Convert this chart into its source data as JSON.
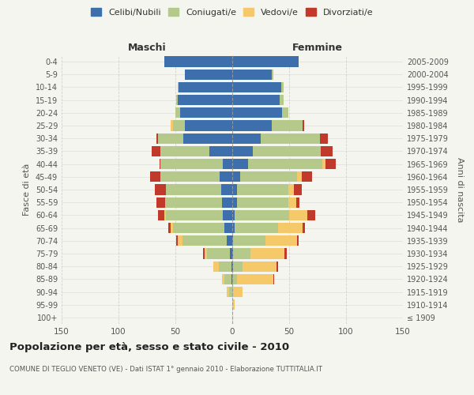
{
  "age_groups": [
    "100+",
    "95-99",
    "90-94",
    "85-89",
    "80-84",
    "75-79",
    "70-74",
    "65-69",
    "60-64",
    "55-59",
    "50-54",
    "45-49",
    "40-44",
    "35-39",
    "30-34",
    "25-29",
    "20-24",
    "15-19",
    "10-14",
    "5-9",
    "0-4"
  ],
  "birth_years": [
    "≤ 1909",
    "1910-1914",
    "1915-1919",
    "1920-1924",
    "1925-1929",
    "1930-1934",
    "1935-1939",
    "1940-1944",
    "1945-1949",
    "1950-1954",
    "1955-1959",
    "1960-1964",
    "1965-1969",
    "1970-1974",
    "1975-1979",
    "1980-1984",
    "1985-1989",
    "1990-1994",
    "1995-1999",
    "2000-2004",
    "2005-2009"
  ],
  "maschi": {
    "celibi": [
      0,
      0,
      0,
      1,
      1,
      2,
      5,
      7,
      8,
      9,
      10,
      11,
      8,
      20,
      43,
      42,
      46,
      48,
      47,
      42,
      60
    ],
    "coniugati": [
      0,
      0,
      3,
      6,
      11,
      20,
      39,
      45,
      50,
      50,
      48,
      52,
      55,
      43,
      22,
      10,
      4,
      1,
      1,
      0,
      0
    ],
    "vedovi": [
      0,
      0,
      2,
      2,
      5,
      2,
      4,
      2,
      2,
      0,
      0,
      0,
      0,
      0,
      0,
      2,
      0,
      0,
      0,
      0,
      0
    ],
    "divorziati": [
      0,
      0,
      0,
      0,
      0,
      2,
      1,
      2,
      5,
      8,
      10,
      9,
      1,
      8,
      2,
      0,
      0,
      0,
      0,
      0,
      0
    ]
  },
  "femmine": {
    "nubili": [
      0,
      0,
      0,
      0,
      1,
      1,
      1,
      2,
      2,
      4,
      4,
      7,
      14,
      18,
      25,
      35,
      44,
      42,
      43,
      35,
      58
    ],
    "coniugate": [
      0,
      0,
      1,
      4,
      8,
      15,
      28,
      38,
      48,
      45,
      45,
      50,
      65,
      60,
      52,
      27,
      5,
      3,
      2,
      1,
      0
    ],
    "vedove": [
      0,
      2,
      8,
      32,
      30,
      30,
      28,
      22,
      16,
      7,
      5,
      4,
      3,
      0,
      0,
      0,
      0,
      0,
      0,
      0,
      0
    ],
    "divorziate": [
      0,
      0,
      0,
      1,
      1,
      2,
      1,
      2,
      7,
      3,
      7,
      9,
      9,
      10,
      7,
      1,
      0,
      0,
      0,
      0,
      0
    ]
  },
  "colors": {
    "celibi": "#3d6fad",
    "coniugati": "#b5c98a",
    "vedovi": "#f5c86a",
    "divorziati": "#c0392b"
  },
  "xlim": 150,
  "title": "Popolazione per età, sesso e stato civile - 2010",
  "subtitle": "COMUNE DI TEGLIO VENETO (VE) - Dati ISTAT 1° gennaio 2010 - Elaborazione TUTTITALIA.IT",
  "ylabel_left": "Fasce di età",
  "ylabel_right": "Anni di nascita",
  "xlabel_left": "Maschi",
  "xlabel_right": "Femmine",
  "bg_color": "#f5f5f0",
  "grid_color": "#cccccc",
  "legend_labels": [
    "Celibi/Nubili",
    "Coniugati/e",
    "Vedovi/e",
    "Divorziati/e"
  ]
}
